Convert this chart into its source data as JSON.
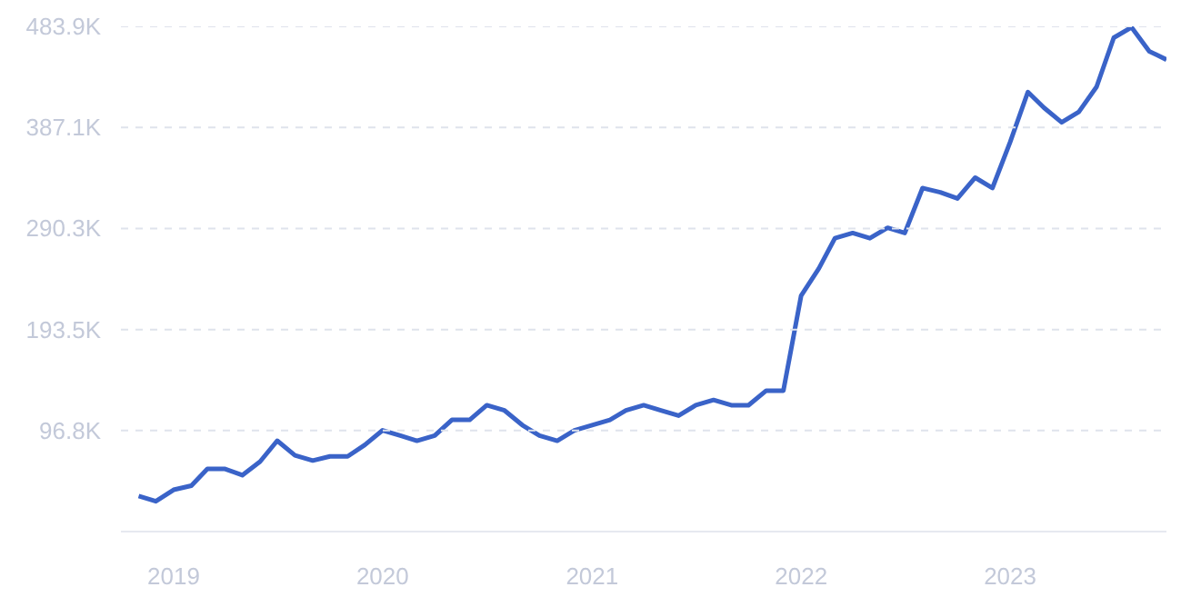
{
  "chart_data": {
    "type": "line",
    "x": [
      "2018-11",
      "2018-12",
      "2019-01",
      "2019-02",
      "2019-03",
      "2019-04",
      "2019-05",
      "2019-06",
      "2019-07",
      "2019-08",
      "2019-09",
      "2019-10",
      "2019-11",
      "2019-12",
      "2020-01",
      "2020-02",
      "2020-03",
      "2020-04",
      "2020-05",
      "2020-06",
      "2020-07",
      "2020-08",
      "2020-09",
      "2020-10",
      "2020-11",
      "2020-12",
      "2021-01",
      "2021-02",
      "2021-03",
      "2021-04",
      "2021-05",
      "2021-06",
      "2021-07",
      "2021-08",
      "2021-09",
      "2021-10",
      "2021-11",
      "2021-12",
      "2022-01",
      "2022-02",
      "2022-03",
      "2022-04",
      "2022-05",
      "2022-06",
      "2022-07",
      "2022-08",
      "2022-09",
      "2022-10",
      "2022-11",
      "2022-12",
      "2023-01",
      "2023-02",
      "2023-03",
      "2023-04",
      "2023-05",
      "2023-06",
      "2023-07",
      "2023-08",
      "2023-09",
      "2023-10"
    ],
    "series": [
      {
        "color": "#3a63c8",
        "values": [
          34000,
          29000,
          40000,
          44000,
          60000,
          60000,
          54000,
          67000,
          87000,
          73000,
          68000,
          72000,
          72000,
          83000,
          97000,
          92000,
          87000,
          92000,
          107000,
          107000,
          121000,
          116000,
          102000,
          92000,
          87000,
          97000,
          102000,
          107000,
          116000,
          121000,
          116000,
          111000,
          121000,
          126000,
          121000,
          121000,
          135000,
          135000,
          226000,
          252000,
          281000,
          286000,
          281000,
          291000,
          286000,
          329000,
          325000,
          319000,
          339000,
          329000,
          373000,
          421000,
          406000,
          392000,
          402000,
          426000,
          473000,
          483000,
          460000,
          452000
        ]
      }
    ],
    "xlim": [
      "2018-10",
      "2023-10"
    ],
    "xticks": [
      "2019",
      "2020",
      "2021",
      "2022",
      "2023"
    ],
    "ylim": [
      0,
      483900
    ],
    "yticks": [
      {
        "value": 96800,
        "label": "96.8K"
      },
      {
        "value": 193500,
        "label": "193.5K"
      },
      {
        "value": 290300,
        "label": "290.3K"
      },
      {
        "value": 387100,
        "label": "387.1K"
      },
      {
        "value": 483900,
        "label": "483.9K"
      }
    ],
    "grid": "y",
    "marker": "none",
    "line_style": "solid"
  }
}
